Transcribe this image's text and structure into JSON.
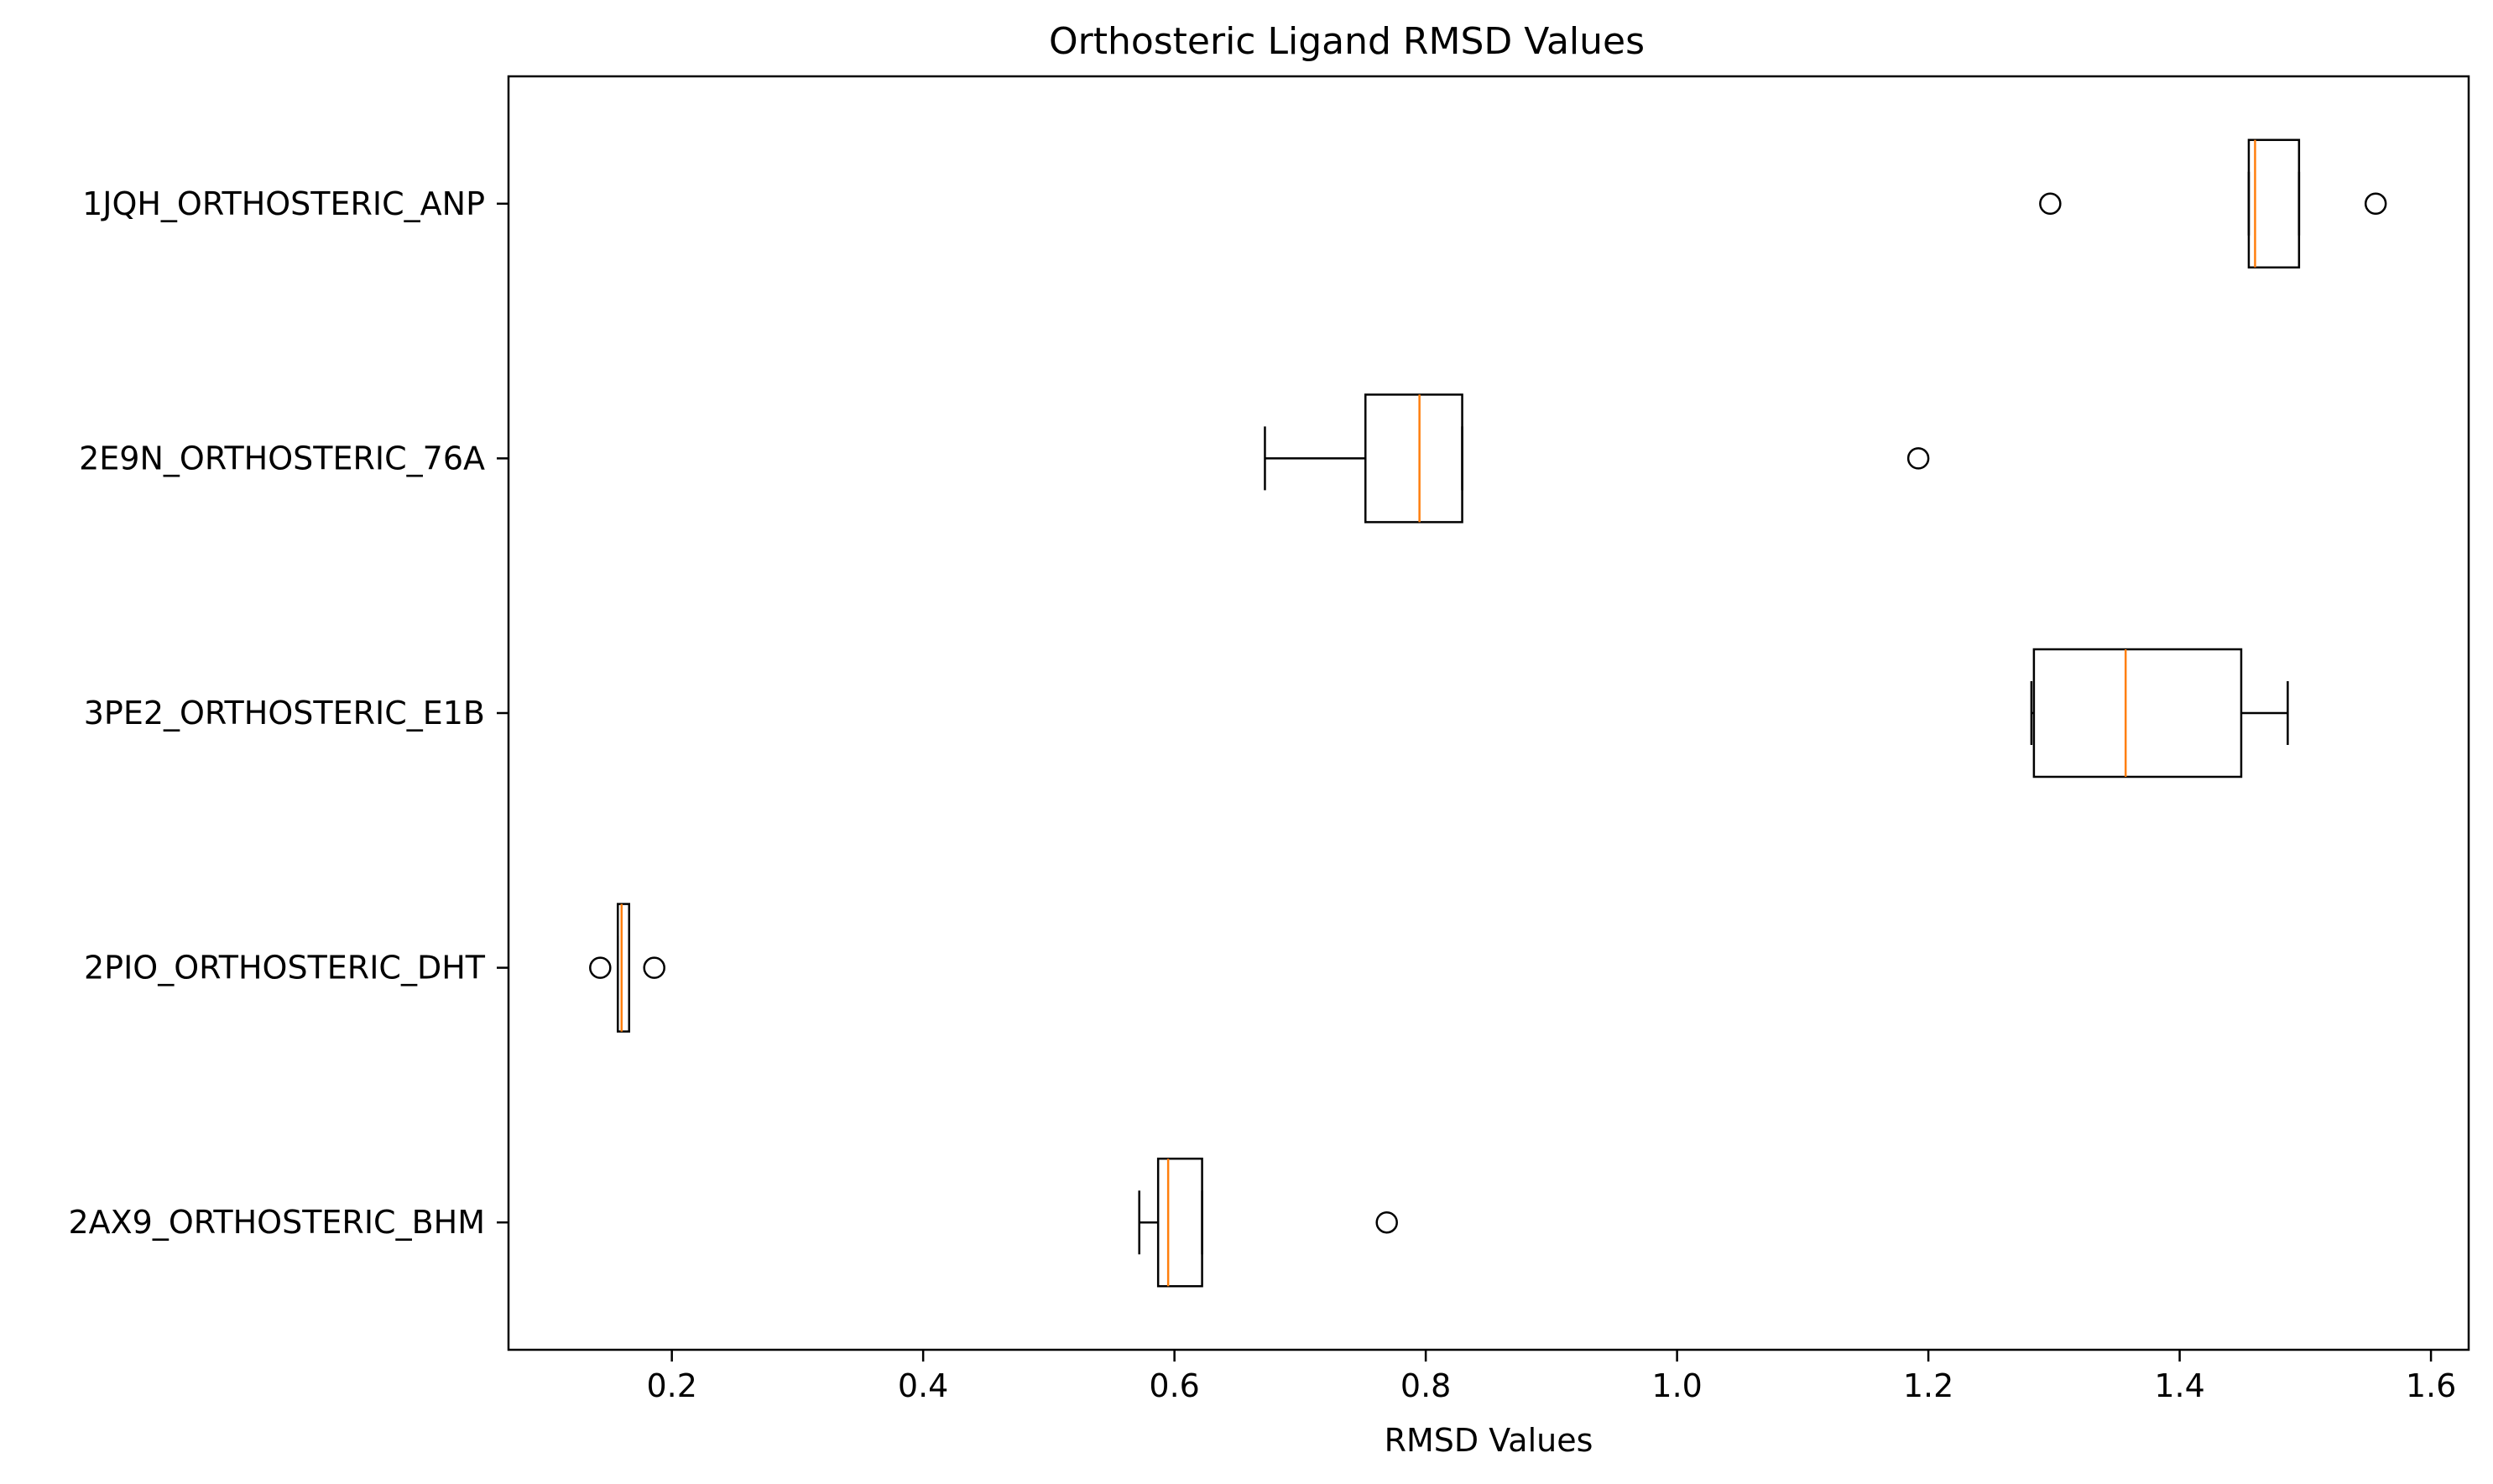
{
  "chart_data": {
    "type": "boxplot",
    "orientation": "horizontal",
    "title": "Orthosteric Ligand RMSD Values",
    "xlabel": "RMSD Values",
    "ylabel": "",
    "xlim": [
      0.07,
      1.63
    ],
    "xticks": [
      0.2,
      0.4,
      0.6,
      0.8,
      1.0,
      1.2,
      1.4,
      1.6
    ],
    "xtick_labels": [
      "0.2",
      "0.4",
      "0.6",
      "0.8",
      "1.0",
      "1.2",
      "1.4",
      "1.6"
    ],
    "grid": false,
    "colors": {
      "box": "#000000",
      "median": "#ff7f0e"
    },
    "categories": [
      "1JQH_ORTHOSTERIC_ANP",
      "2E9N_ORTHOSTERIC_76A",
      "3PE2_ORTHOSTERIC_E1B",
      "2PIO_ORTHOSTERIC_DHT",
      "2AX9_ORTHOSTERIC_BHM"
    ],
    "boxes": [
      {
        "label": "1JQH_ORTHOSTERIC_ANP",
        "whisker_low": 1.455,
        "q1": 1.455,
        "median": 1.46,
        "q3": 1.495,
        "whisker_high": 1.495,
        "outliers": [
          1.297,
          1.556
        ]
      },
      {
        "label": "2E9N_ORTHOSTERIC_76A",
        "whisker_low": 0.672,
        "q1": 0.752,
        "median": 0.795,
        "q3": 0.829,
        "whisker_high": 0.829,
        "outliers": [
          1.192
        ]
      },
      {
        "label": "3PE2_ORTHOSTERIC_E1B",
        "whisker_low": 1.282,
        "q1": 1.284,
        "median": 1.357,
        "q3": 1.449,
        "whisker_high": 1.486,
        "outliers": []
      },
      {
        "label": "2PIO_ORTHOSTERIC_DHT",
        "whisker_low": 0.157,
        "q1": 0.157,
        "median": 0.16,
        "q3": 0.166,
        "whisker_high": 0.166,
        "outliers": [
          0.143,
          0.186
        ]
      },
      {
        "label": "2AX9_ORTHOSTERIC_BHM",
        "whisker_low": 0.572,
        "q1": 0.587,
        "median": 0.595,
        "q3": 0.622,
        "whisker_high": 0.622,
        "outliers": [
          0.769
        ]
      }
    ]
  }
}
